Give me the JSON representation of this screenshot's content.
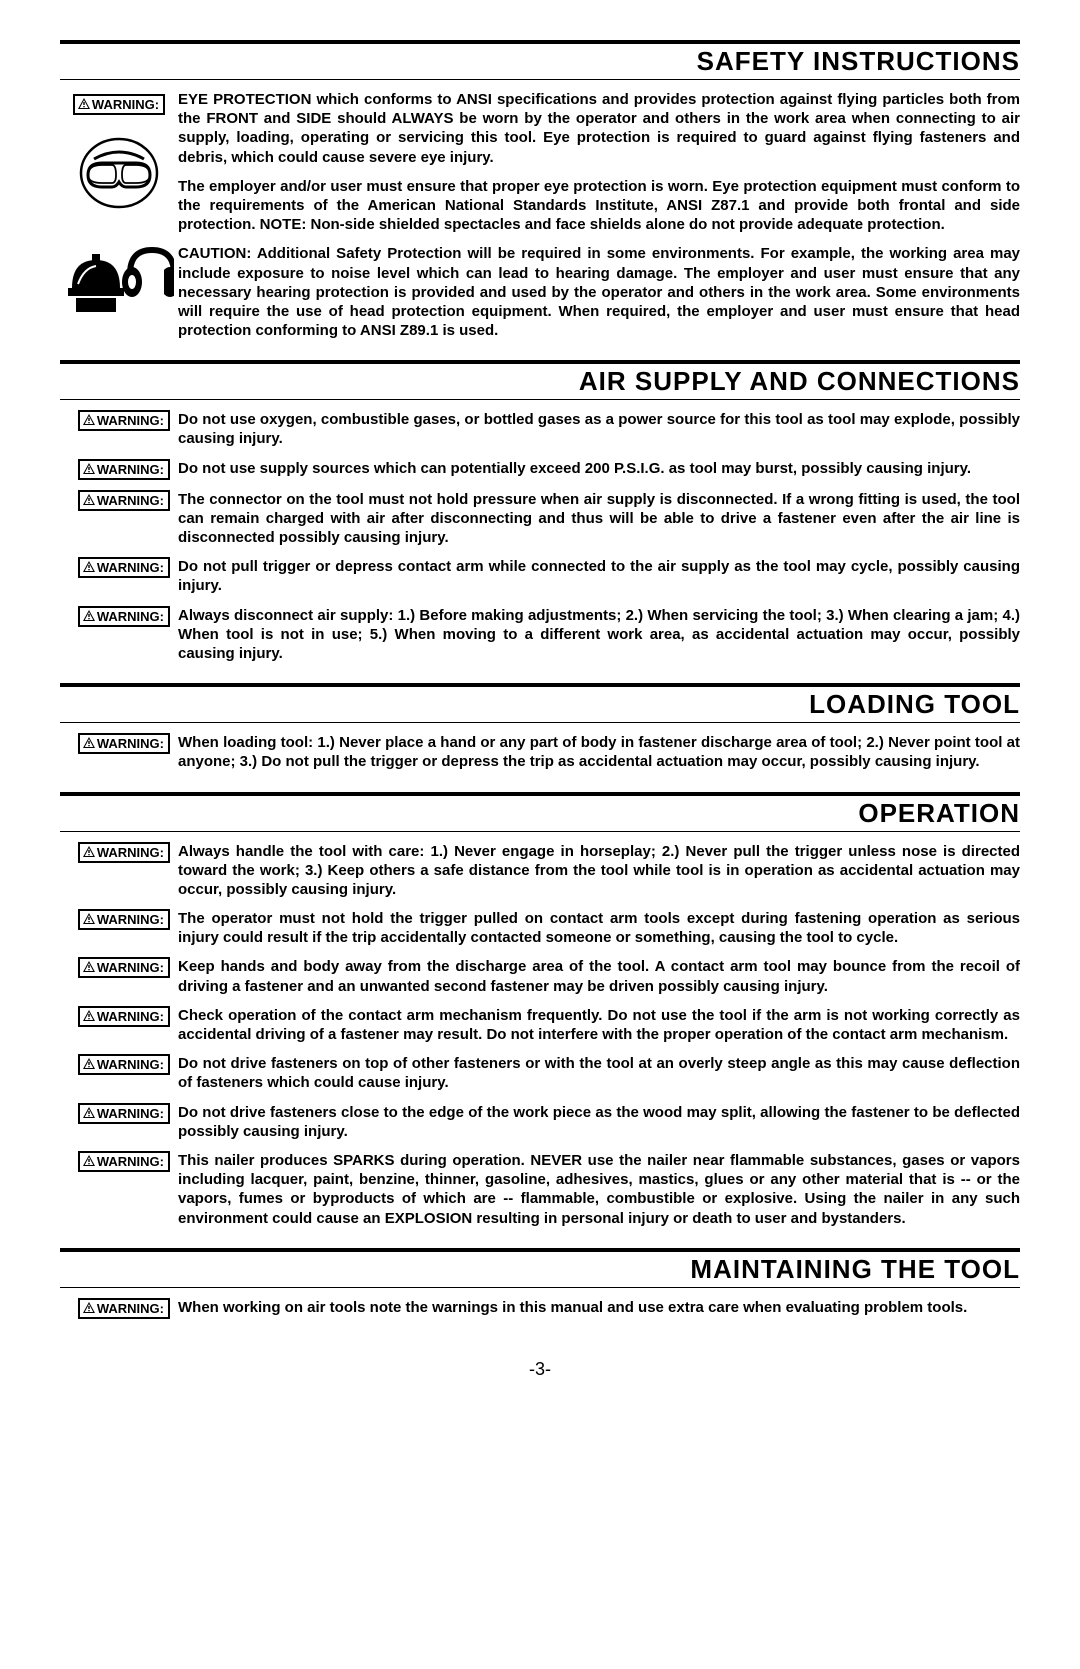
{
  "page_number": "-3-",
  "warning_label": "WARNING:",
  "style": {
    "section_title_fontsize": 26,
    "body_fontsize": 15,
    "warning_fontsize": 13,
    "page_num_fontsize": 18,
    "text_color": "#000000",
    "background_color": "#ffffff",
    "rule_thick": 4,
    "rule_thin": 1.5
  },
  "sections": [
    {
      "title": "SAFETY INSTRUCTIONS",
      "has_icons": true,
      "items": [
        {
          "text": "EYE PROTECTION which conforms to ANSI specifications and provides protection against flying particles both from the FRONT and SIDE should ALWAYS be worn by the operator and others in the work area when connecting to air supply, loading, operating or servicing this tool. Eye protection is required to guard against flying fasteners and debris, which could cause severe eye injury."
        },
        {
          "text": "The employer and/or user must ensure that proper eye protection is worn. Eye protection equipment must conform to the requirements of the American National Standards Institute, ANSI Z87.1 and provide both frontal and side protection. NOTE: Non-side shielded spectacles and face shields alone do not provide adequate protection.",
          "no_label": true
        },
        {
          "text": "CAUTION: Additional Safety Protection will be required in some environments. For example, the working area may include exposure to noise level which can lead to hearing damage. The employer and user must ensure that any necessary hearing protection is provided and used by the operator and others in the work area. Some environments will require the use of head protection equipment. When required, the employer and user must ensure that head protection conforming to ANSI Z89.1 is used.",
          "no_label": true
        }
      ]
    },
    {
      "title": "AIR SUPPLY AND CONNECTIONS",
      "items": [
        {
          "text": "Do not use oxygen, combustible gases, or bottled gases as a power source for this tool as tool may explode, possibly causing injury."
        },
        {
          "text": "Do not use supply sources which can potentially exceed 200 P.S.I.G. as tool may burst, possibly causing injury."
        },
        {
          "text": "The connector on the tool must not hold pressure when air supply is disconnected. If a wrong fitting is used, the tool can remain charged with air after disconnecting and thus will be able to drive a fastener even after the air line is disconnected possibly causing injury."
        },
        {
          "text": "Do not pull trigger or depress contact arm while connected to the air supply as the tool may cycle, possibly causing injury."
        },
        {
          "text": "Always disconnect air supply: 1.) Before making adjustments; 2.) When servicing the tool; 3.) When clearing a jam; 4.) When tool is not in use; 5.) When moving to a different work area, as accidental actuation may occur, possibly causing injury."
        }
      ]
    },
    {
      "title": "LOADING TOOL",
      "items": [
        {
          "text": "When loading tool: 1.) Never place a hand or any part of body in fastener discharge area of tool; 2.) Never point tool at anyone; 3.) Do not pull the trigger or depress the trip as accidental actuation may occur, possibly causing injury."
        }
      ]
    },
    {
      "title": "OPERATION",
      "items": [
        {
          "text": "Always handle the tool with care: 1.) Never engage in horseplay; 2.) Never pull the trigger unless nose is directed toward the work; 3.) Keep others a safe distance from the tool while tool is in operation as accidental actuation may occur, possibly causing injury."
        },
        {
          "text": "The operator must not hold the trigger pulled on contact arm tools except during fastening operation as serious injury could result if the trip accidentally contacted someone or something, causing the tool to cycle."
        },
        {
          "text": "Keep hands and body away from the discharge area of the tool. A contact arm tool may bounce from the recoil of driving a fastener and an unwanted second fastener may be driven possibly causing injury."
        },
        {
          "text": "Check operation of the contact arm mechanism frequently. Do not use the tool if the arm is not working correctly as accidental driving of a fastener may result. Do not interfere with the proper operation of the contact arm mechanism."
        },
        {
          "text": "Do not drive fasteners on top of other fasteners or with the tool at an overly steep angle as this may cause deflection of fasteners which could cause injury."
        },
        {
          "text": "Do not drive fasteners close to the edge of the work piece as the wood may split, allowing the fastener to be deflected possibly causing injury."
        },
        {
          "text": "This nailer produces SPARKS during operation. NEVER use the nailer near flammable substances, gases or vapors including lacquer, paint, benzine, thinner, gasoline, adhesives, mastics, glues or any other material that is -- or the vapors, fumes or byproducts of which are -- flammable, combustible or explosive. Using the nailer in any such environment could cause an EXPLOSION resulting in personal injury or death to user and bystanders."
        }
      ]
    },
    {
      "title": "MAINTAINING THE TOOL",
      "items": [
        {
          "text": "When working on air tools note the warnings in this manual and use extra care when evaluating problem tools."
        }
      ]
    }
  ]
}
